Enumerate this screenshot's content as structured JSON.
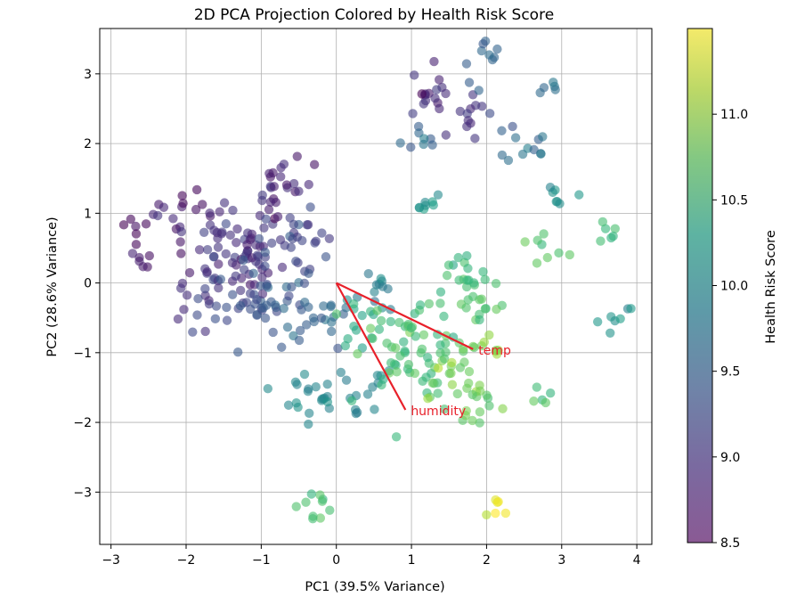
{
  "chart_data": {
    "type": "scatter",
    "title": "2D PCA Projection Colored by Health Risk Score",
    "xlabel": "PC1 (39.5% Variance)",
    "ylabel": "PC2 (28.6% Variance)",
    "xlim": [
      -3.15,
      4.2
    ],
    "ylim": [
      -3.75,
      3.65
    ],
    "xticks": [
      -3,
      -2,
      -1,
      0,
      1,
      2,
      3,
      4
    ],
    "yticks": [
      -3,
      -2,
      -1,
      0,
      1,
      2,
      3
    ],
    "xtick_labels": [
      "−3",
      "−2",
      "−1",
      "0",
      "1",
      "2",
      "3",
      "4"
    ],
    "ytick_labels": [
      "−3",
      "−2",
      "−1",
      "0",
      "1",
      "2",
      "3"
    ],
    "grid": true,
    "point_opacity": 0.6,
    "colormap": "viridis",
    "colorbar": {
      "label": "Health Risk Score",
      "range": [
        8.5,
        11.5
      ],
      "ticks": [
        8.5,
        9.0,
        9.5,
        10.0,
        10.5,
        11.0
      ],
      "tick_labels": [
        "8.5",
        "9.0",
        "9.5",
        "10.0",
        "10.5",
        "11.0"
      ]
    },
    "clusters": [
      {
        "cx": -2.7,
        "cy": 0.8,
        "spread": 0.12,
        "n": 6,
        "score": 8.6
      },
      {
        "cx": -2.6,
        "cy": 0.3,
        "spread": 0.1,
        "n": 6,
        "score": 8.65
      },
      {
        "cx": -2.0,
        "cy": 1.0,
        "spread": 0.22,
        "n": 20,
        "score": 8.75
      },
      {
        "cx": -1.9,
        "cy": -0.25,
        "spread": 0.22,
        "n": 16,
        "score": 9.0
      },
      {
        "cx": -1.3,
        "cy": 0.4,
        "spread": 0.3,
        "n": 60,
        "score": 8.9
      },
      {
        "cx": -1.0,
        "cy": -0.3,
        "spread": 0.3,
        "n": 45,
        "score": 9.25
      },
      {
        "cx": -0.7,
        "cy": 1.35,
        "spread": 0.2,
        "n": 26,
        "score": 8.8
      },
      {
        "cx": -0.5,
        "cy": 0.6,
        "spread": 0.25,
        "n": 30,
        "score": 9.1
      },
      {
        "cx": -0.3,
        "cy": -0.5,
        "spread": 0.22,
        "n": 22,
        "score": 9.5
      },
      {
        "cx": -0.4,
        "cy": -1.5,
        "spread": 0.25,
        "n": 20,
        "score": 9.9
      },
      {
        "cx": 0.3,
        "cy": -1.65,
        "spread": 0.25,
        "n": 14,
        "score": 9.8
      },
      {
        "cx": 0.5,
        "cy": -0.15,
        "spread": 0.15,
        "n": 12,
        "score": 9.8
      },
      {
        "cx": 0.3,
        "cy": -0.6,
        "spread": 0.2,
        "n": 14,
        "score": 10.3
      },
      {
        "cx": 1.0,
        "cy": -0.8,
        "spread": 0.35,
        "n": 60,
        "score": 10.6
      },
      {
        "cx": 1.5,
        "cy": -1.3,
        "spread": 0.3,
        "n": 30,
        "score": 10.8
      },
      {
        "cx": 1.8,
        "cy": -0.3,
        "spread": 0.2,
        "n": 14,
        "score": 10.6
      },
      {
        "cx": 1.8,
        "cy": 0.05,
        "spread": 0.18,
        "n": 16,
        "score": 10.5
      },
      {
        "cx": 2.1,
        "cy": -0.95,
        "spread": 0.12,
        "n": 6,
        "score": 11.0
      },
      {
        "cx": 1.85,
        "cy": -1.75,
        "spread": 0.15,
        "n": 10,
        "score": 10.8
      },
      {
        "cx": 1.3,
        "cy": 2.75,
        "spread": 0.2,
        "n": 16,
        "score": 8.85
      },
      {
        "cx": 1.7,
        "cy": 2.45,
        "spread": 0.2,
        "n": 12,
        "score": 8.95
      },
      {
        "cx": 1.9,
        "cy": 3.2,
        "spread": 0.15,
        "n": 10,
        "score": 9.45
      },
      {
        "cx": 1.15,
        "cy": 2.15,
        "spread": 0.12,
        "n": 8,
        "score": 9.5
      },
      {
        "cx": 2.55,
        "cy": 2.1,
        "spread": 0.18,
        "n": 12,
        "score": 9.55
      },
      {
        "cx": 2.8,
        "cy": 2.8,
        "spread": 0.08,
        "n": 5,
        "score": 9.6
      },
      {
        "cx": 1.2,
        "cy": 1.1,
        "spread": 0.15,
        "n": 8,
        "score": 10.05
      },
      {
        "cx": 2.95,
        "cy": 1.25,
        "spread": 0.12,
        "n": 7,
        "score": 9.95
      },
      {
        "cx": 2.8,
        "cy": 0.35,
        "spread": 0.15,
        "n": 8,
        "score": 10.6
      },
      {
        "cx": 3.6,
        "cy": 0.75,
        "spread": 0.12,
        "n": 6,
        "score": 10.4
      },
      {
        "cx": 3.7,
        "cy": -0.5,
        "spread": 0.12,
        "n": 7,
        "score": 10.0
      },
      {
        "cx": 2.75,
        "cy": -1.55,
        "spread": 0.1,
        "n": 5,
        "score": 10.5
      },
      {
        "cx": -0.3,
        "cy": -3.2,
        "spread": 0.12,
        "n": 10,
        "score": 10.6
      },
      {
        "cx": 2.1,
        "cy": -3.25,
        "spread": 0.08,
        "n": 6,
        "score": 11.35
      }
    ],
    "loadings": [
      {
        "name": "temp",
        "x": 1.82,
        "y": -0.95
      },
      {
        "name": "humidity",
        "x": 0.92,
        "y": -1.82
      }
    ]
  }
}
